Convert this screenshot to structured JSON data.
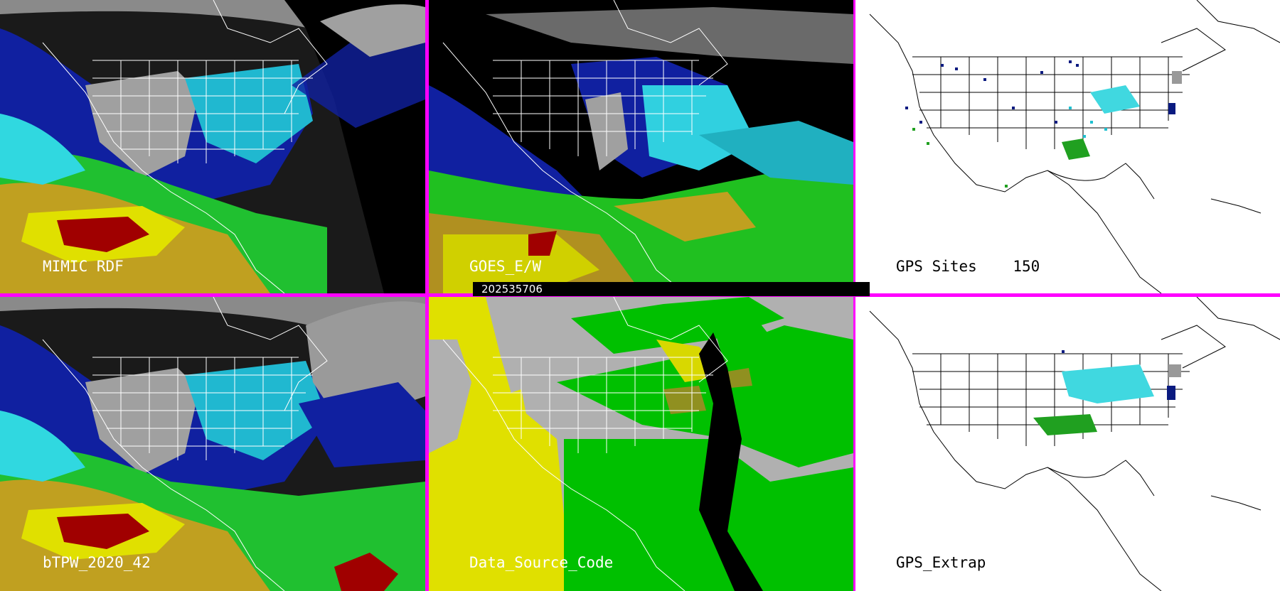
{
  "panels": [
    {
      "id": "mimic",
      "label": "MIMIC RDF"
    },
    {
      "id": "goes",
      "label": "GOES_E/W"
    },
    {
      "id": "gps_sites",
      "label": "GPS Sites    150"
    },
    {
      "id": "btpw",
      "label": "bTPW_2020_42"
    },
    {
      "id": "source",
      "label": "Data_Source_Code"
    },
    {
      "id": "gps_extrap",
      "label": "GPS_Extrap"
    }
  ],
  "timestamp": "202535706",
  "colors": {
    "border": "#ff00ff",
    "tpw_scale": [
      "#3a3a3a",
      "#9a9a9a",
      "#0a0a80",
      "#1030c0",
      "#20d0e0",
      "#60e8e0",
      "#20c020",
      "#40e040",
      "#b0a020",
      "#e0e000",
      "#a00000"
    ],
    "source_codes": [
      "#b0b0b0",
      "#00c000",
      "#e0e000",
      "#000000",
      "#909020"
    ]
  }
}
